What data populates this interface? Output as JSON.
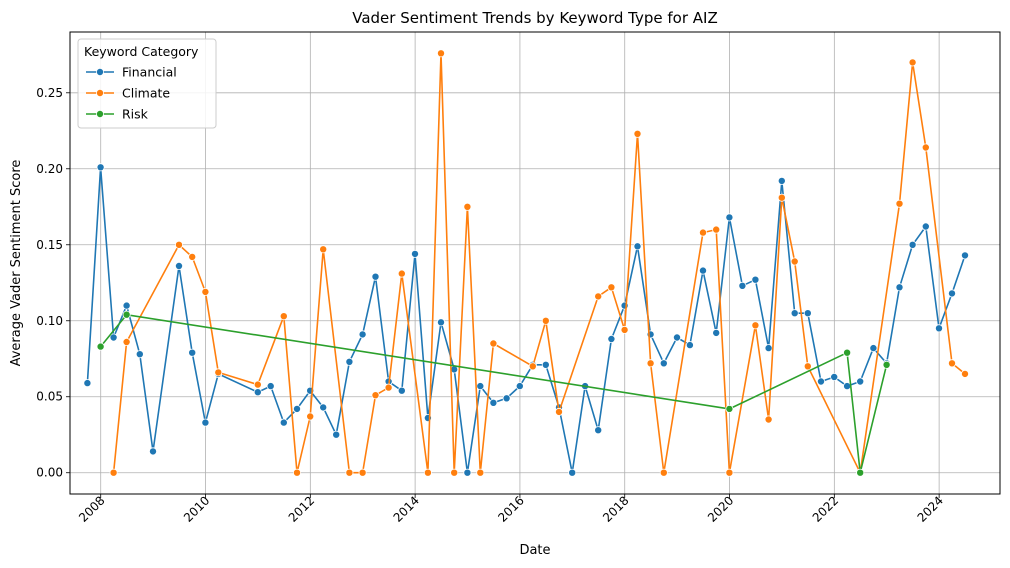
{
  "chart_data": {
    "type": "line",
    "title": "Vader Sentiment Trends by Keyword Type for AIZ",
    "xlabel": "Date",
    "ylabel": "Average Vader Sentiment Score",
    "xlim": [
      "2007-06-01",
      "2025-03-01"
    ],
    "ylim": [
      -0.014,
      0.29
    ],
    "x_ticks": [
      "2008",
      "2010",
      "2012",
      "2014",
      "2016",
      "2018",
      "2020",
      "2022",
      "2024"
    ],
    "y_ticks": [
      "0.00",
      "0.05",
      "0.10",
      "0.15",
      "0.20",
      "0.25"
    ],
    "grid": true,
    "legend": {
      "title": "Keyword Category",
      "position": "top-left"
    },
    "series": [
      {
        "name": "Financial",
        "color": "#1f77b4",
        "points": [
          [
            "2007-09-30",
            0.059
          ],
          [
            "2007-12-31",
            0.201
          ],
          [
            "2008-03-31",
            0.089
          ],
          [
            "2008-06-30",
            0.11
          ],
          [
            "2008-09-30",
            0.078
          ],
          [
            "2008-12-31",
            0.014
          ],
          [
            "2009-06-30",
            0.136
          ],
          [
            "2009-09-30",
            0.079
          ],
          [
            "2009-12-31",
            0.033
          ],
          [
            "2010-03-31",
            0.065
          ],
          [
            "2010-12-31",
            0.053
          ],
          [
            "2011-03-31",
            0.057
          ],
          [
            "2011-06-30",
            0.033
          ],
          [
            "2011-09-30",
            0.042
          ],
          [
            "2011-12-31",
            0.054
          ],
          [
            "2012-03-31",
            0.043
          ],
          [
            "2012-06-30",
            0.025
          ],
          [
            "2012-09-30",
            0.073
          ],
          [
            "2012-12-31",
            0.091
          ],
          [
            "2013-03-31",
            0.129
          ],
          [
            "2013-06-30",
            0.06
          ],
          [
            "2013-09-30",
            0.054
          ],
          [
            "2013-12-31",
            0.144
          ],
          [
            "2014-03-31",
            0.036
          ],
          [
            "2014-06-30",
            0.099
          ],
          [
            "2014-09-30",
            0.068
          ],
          [
            "2014-12-31",
            0.0
          ],
          [
            "2015-03-31",
            0.057
          ],
          [
            "2015-06-30",
            0.046
          ],
          [
            "2015-09-30",
            0.049
          ],
          [
            "2015-12-31",
            0.057
          ],
          [
            "2016-03-31",
            0.071
          ],
          [
            "2016-06-30",
            0.071
          ],
          [
            "2016-09-30",
            0.043
          ],
          [
            "2016-12-31",
            0.0
          ],
          [
            "2017-03-31",
            0.057
          ],
          [
            "2017-06-30",
            0.028
          ],
          [
            "2017-09-30",
            0.088
          ],
          [
            "2017-12-31",
            0.11
          ],
          [
            "2018-03-31",
            0.149
          ],
          [
            "2018-06-30",
            0.091
          ],
          [
            "2018-09-30",
            0.072
          ],
          [
            "2018-12-31",
            0.089
          ],
          [
            "2019-03-31",
            0.084
          ],
          [
            "2019-06-30",
            0.133
          ],
          [
            "2019-09-30",
            0.092
          ],
          [
            "2019-12-31",
            0.168
          ],
          [
            "2020-03-31",
            0.123
          ],
          [
            "2020-06-30",
            0.127
          ],
          [
            "2020-09-30",
            0.082
          ],
          [
            "2020-12-31",
            0.192
          ],
          [
            "2021-03-31",
            0.105
          ],
          [
            "2021-06-30",
            0.105
          ],
          [
            "2021-09-30",
            0.06
          ],
          [
            "2021-12-31",
            0.063
          ],
          [
            "2022-03-31",
            0.057
          ],
          [
            "2022-06-30",
            0.06
          ],
          [
            "2022-09-30",
            0.082
          ],
          [
            "2022-12-31",
            0.072
          ],
          [
            "2023-03-31",
            0.122
          ],
          [
            "2023-06-30",
            0.15
          ],
          [
            "2023-09-30",
            0.162
          ],
          [
            "2023-12-31",
            0.095
          ],
          [
            "2024-03-31",
            0.118
          ],
          [
            "2024-06-30",
            0.143
          ]
        ]
      },
      {
        "name": "Climate",
        "color": "#ff7f0e",
        "points": [
          [
            "2008-03-31",
            0.0
          ],
          [
            "2008-06-30",
            0.086
          ],
          [
            "2009-06-30",
            0.15
          ],
          [
            "2009-09-30",
            0.142
          ],
          [
            "2009-12-31",
            0.119
          ],
          [
            "2010-03-31",
            0.066
          ],
          [
            "2010-12-31",
            0.058
          ],
          [
            "2011-06-30",
            0.103
          ],
          [
            "2011-09-30",
            0.0
          ],
          [
            "2011-12-31",
            0.037
          ],
          [
            "2012-03-31",
            0.147
          ],
          [
            "2012-09-30",
            0.0
          ],
          [
            "2012-12-31",
            0.0
          ],
          [
            "2013-03-31",
            0.051
          ],
          [
            "2013-06-30",
            0.056
          ],
          [
            "2013-09-30",
            0.131
          ],
          [
            "2014-03-31",
            0.0
          ],
          [
            "2014-06-30",
            0.276
          ],
          [
            "2014-09-30",
            0.0
          ],
          [
            "2014-12-31",
            0.175
          ],
          [
            "2015-03-31",
            0.0
          ],
          [
            "2015-06-30",
            0.085
          ],
          [
            "2016-03-31",
            0.07
          ],
          [
            "2016-06-30",
            0.1
          ],
          [
            "2016-09-30",
            0.04
          ],
          [
            "2017-06-30",
            0.116
          ],
          [
            "2017-09-30",
            0.122
          ],
          [
            "2017-12-31",
            0.094
          ],
          [
            "2018-03-31",
            0.223
          ],
          [
            "2018-06-30",
            0.072
          ],
          [
            "2018-09-30",
            0.0
          ],
          [
            "2019-06-30",
            0.158
          ],
          [
            "2019-09-30",
            0.16
          ],
          [
            "2019-12-31",
            0.0
          ],
          [
            "2020-06-30",
            0.097
          ],
          [
            "2020-09-30",
            0.035
          ],
          [
            "2020-12-31",
            0.181
          ],
          [
            "2021-03-31",
            0.139
          ],
          [
            "2021-06-30",
            0.07
          ],
          [
            "2022-06-30",
            0.0
          ],
          [
            "2023-03-31",
            0.177
          ],
          [
            "2023-06-30",
            0.27
          ],
          [
            "2023-09-30",
            0.214
          ],
          [
            "2024-03-31",
            0.072
          ],
          [
            "2024-06-30",
            0.065
          ]
        ]
      },
      {
        "name": "Risk",
        "color": "#2ca02c",
        "points": [
          [
            "2007-12-31",
            0.083
          ],
          [
            "2008-06-30",
            0.104
          ],
          [
            "2019-12-31",
            0.042
          ],
          [
            "2022-03-31",
            0.079
          ],
          [
            "2022-06-30",
            0.0
          ],
          [
            "2022-12-31",
            0.071
          ]
        ]
      }
    ]
  }
}
